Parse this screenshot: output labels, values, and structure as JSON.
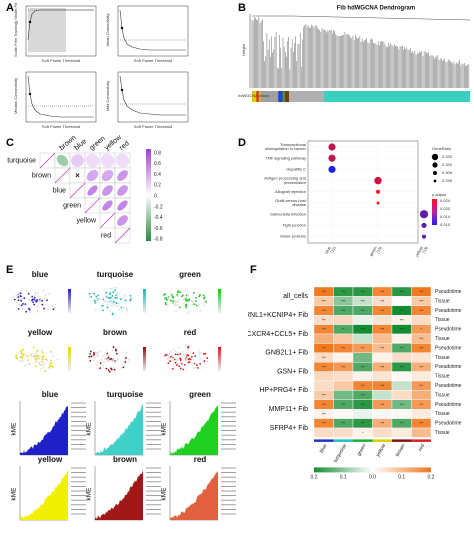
{
  "panel_labels": {
    "a": "A",
    "b": "B",
    "c": "C",
    "d": "D",
    "e": "E",
    "f": "F"
  },
  "panel_a": {
    "plots": [
      {
        "ylabel": "Scale Free Topology Model Fit",
        "xlabel": "Soft Power Threshold"
      },
      {
        "ylabel": "Mean Connectivity",
        "xlabel": "Soft Power Threshold"
      },
      {
        "ylabel": "Median Connectivity",
        "xlabel": "Soft Power Threshold"
      },
      {
        "ylabel": "Max Connectivity",
        "xlabel": "Soft Power Threshold"
      }
    ]
  },
  "panel_b": {
    "title": "Fib hdWGCNA Dendrogram",
    "ylabel": "Height",
    "row_label": "hdWGCNA colors",
    "color_bands": [
      {
        "color": "#e2c800",
        "frac": 0.02
      },
      {
        "color": "#d4301f",
        "frac": 0.01
      },
      {
        "color": "#e8a000",
        "frac": 0.01
      },
      {
        "color": "#a0a0a0",
        "frac": 0.08
      },
      {
        "color": "#2a3fd8",
        "frac": 0.02
      },
      {
        "color": "#2aa02a",
        "frac": 0.01
      },
      {
        "color": "#7a3a10",
        "frac": 0.02
      },
      {
        "color": "#b0b0b0",
        "frac": 0.16
      },
      {
        "color": "#3ad0c0",
        "frac": 0.67
      }
    ]
  },
  "panel_c": {
    "modules": [
      "turquoise",
      "brown",
      "blue",
      "green",
      "yellow",
      "red"
    ],
    "legend_ticks": [
      "0.8",
      "0.6",
      "0.4",
      "0.2",
      "0",
      "-0.2",
      "-0.4",
      "-0.6",
      "-0.8"
    ],
    "cross_mark": "×",
    "corr": [
      [
        1,
        -0.5,
        0.3,
        0.2,
        0.2,
        0.2
      ],
      [
        -0.5,
        1,
        0,
        0.5,
        0.5,
        0.6
      ],
      [
        0.3,
        0,
        1,
        0.7,
        0.6,
        0.6
      ],
      [
        0.2,
        0.5,
        0.7,
        1,
        0.7,
        0.7
      ],
      [
        0.2,
        0.5,
        0.6,
        0.7,
        1,
        0.6
      ],
      [
        0.2,
        0.6,
        0.6,
        0.7,
        0.6,
        1
      ]
    ]
  },
  "panel_d": {
    "chart_data": {
      "type": "scatter",
      "y_categories": [
        "Transcriptional misregulation in cancer",
        "TNF signaling pathway",
        "Hepatitis C",
        "Antigen processing and presentation",
        "Allograft rejection",
        "Graft-versus-host disease",
        "Salmonella infection",
        "Tight junction",
        "Motor proteins"
      ],
      "x_categories": [
        "blue (11)",
        "green (13)",
        "yellow (13)"
      ],
      "points": [
        {
          "x": "blue (11)",
          "y": "Transcriptional misregulation in cancer",
          "generatio": 0.33,
          "padjust": 0.02
        },
        {
          "x": "blue (11)",
          "y": "TNF signaling pathway",
          "generatio": 0.33,
          "padjust": 0.02
        },
        {
          "x": "blue (11)",
          "y": "Hepatitis C",
          "generatio": 0.33,
          "padjust": 0.01
        },
        {
          "x": "green (13)",
          "y": "Antigen processing and presentation",
          "generatio": 0.333,
          "padjust": 0.021
        },
        {
          "x": "green (13)",
          "y": "Allograft rejection",
          "generatio": 0.3,
          "padjust": 0.024
        },
        {
          "x": "green (13)",
          "y": "Graft-versus-host disease",
          "generatio": 0.29,
          "padjust": 0.024
        },
        {
          "x": "yellow (13)",
          "y": "Salmonella infection",
          "generatio": 0.34,
          "padjust": 0.014
        },
        {
          "x": "yellow (13)",
          "y": "Tight junction",
          "generatio": 0.31,
          "padjust": 0.014
        },
        {
          "x": "yellow (13)",
          "y": "Motor proteins",
          "generatio": 0.3,
          "padjust": 0.014
        }
      ],
      "legend_size_title": "GeneRatio",
      "legend_size_labels": [
        "0.333",
        "0.320",
        "0.306",
        "0.295"
      ],
      "legend_color_title": "p.adjust",
      "legend_color_labels": [
        "0.024",
        "0.020",
        "0.014",
        "0.010"
      ]
    }
  },
  "panel_e": {
    "umaps": [
      {
        "name": "blue",
        "color": "#2a20c8"
      },
      {
        "name": "turquoise",
        "color": "#1ab8b0"
      },
      {
        "name": "green",
        "color": "#1ac81a"
      },
      {
        "name": "yellow",
        "color": "#e8d800"
      },
      {
        "name": "brown",
        "color": "#8a1010"
      },
      {
        "name": "red",
        "color": "#d81818"
      }
    ],
    "kme": [
      {
        "name": "blue",
        "color": "#2020c8"
      },
      {
        "name": "turquoise",
        "color": "#40d0c8"
      },
      {
        "name": "green",
        "color": "#20d020"
      },
      {
        "name": "yellow",
        "color": "#f0f000"
      },
      {
        "name": "brown",
        "color": "#a01818"
      },
      {
        "name": "red",
        "color": "#e06040"
      }
    ],
    "kme_ylabel": "kME"
  },
  "panel_f": {
    "row_groups": [
      "all_cells",
      "ATRNL1+KCNIP4+ Fib",
      "CXCR4+CCL5+ Fib",
      "GNB2L1+ Fib",
      "GSN+ Fib",
      "HP+PRG4+ Fib",
      "MMP11+ Fib",
      "SFRP4+ Fib"
    ],
    "sub_rows": [
      "Pseudotime",
      "Tissue"
    ],
    "columns": [
      "blue",
      "turquoise",
      "green",
      "yellow",
      "brown",
      "red"
    ],
    "legend_ticks": [
      "0.2",
      "0.1",
      "0.0",
      "0.1",
      "0.2"
    ],
    "cells": [
      [
        0.2,
        -0.18,
        -0.18,
        0.18,
        -0.18,
        0.2
      ],
      [
        0.08,
        -0.1,
        -0.05,
        0.05,
        0,
        0.08
      ],
      [
        0.18,
        -0.15,
        -0.15,
        0.18,
        -0.2,
        0.18
      ],
      [
        0.05,
        0.06,
        -0.02,
        0.04,
        0.02,
        0.05
      ],
      [
        0.18,
        -0.15,
        -0.2,
        0.18,
        -0.2,
        0.15
      ],
      [
        0.12,
        0.08,
        -0.05,
        0.1,
        0.02,
        0.1
      ],
      [
        0.2,
        0.18,
        0.15,
        0.1,
        -0.15,
        0.18
      ],
      [
        0.05,
        0.02,
        -0.12,
        0.02,
        0.05,
        0.04
      ],
      [
        0.18,
        0.15,
        -0.15,
        0.12,
        -0.18,
        0.12
      ],
      [
        0.06,
        0.05,
        0.02,
        0.04,
        0.01,
        0.03
      ],
      [
        0.05,
        0.08,
        0.18,
        0.18,
        -0.05,
        0.15
      ],
      [
        0.08,
        -0.12,
        -0.15,
        -0.05,
        0.05,
        0.12
      ],
      [
        0.18,
        -0.15,
        -0.18,
        0.15,
        -0.12,
        0.15
      ],
      [
        0.02,
        0.01,
        -0.02,
        0.01,
        0.01,
        0.03
      ],
      [
        0.18,
        -0.15,
        -0.18,
        0.12,
        -0.15,
        0.18
      ],
      [
        0.05,
        0.05,
        0.02,
        0.05,
        0.03,
        0.1
      ]
    ],
    "stars": [
      [
        "***",
        "***",
        "***",
        "***",
        "***",
        "***"
      ],
      [
        "***",
        "***",
        "***",
        "***",
        ".",
        "***"
      ],
      [
        "***",
        "***",
        "***",
        "***",
        "***",
        "***"
      ],
      [
        "***",
        "",
        "",
        "",
        "***",
        ""
      ],
      [
        "***",
        "**",
        "***",
        "***",
        "***",
        "*"
      ],
      [
        "",
        "",
        "",
        "",
        "",
        "***"
      ],
      [
        "**",
        "***",
        "***",
        "***",
        "***",
        "***"
      ],
      [
        "***",
        "",
        "",
        "",
        "",
        ""
      ],
      [
        "***",
        "***",
        "***",
        "***",
        "***",
        "***"
      ],
      [
        "",
        "",
        "",
        "",
        "",
        ""
      ],
      [
        "",
        "",
        "***",
        "***",
        "",
        "***"
      ],
      [
        "***",
        "",
        "***",
        "",
        "",
        ""
      ],
      [
        "***",
        "***",
        "***",
        "***",
        "***",
        "***"
      ],
      [
        "***",
        "",
        "",
        "",
        "",
        ""
      ],
      [
        "***",
        "***",
        "***",
        "***",
        "***",
        "***"
      ],
      [
        "",
        "",
        "*",
        "",
        "",
        ""
      ]
    ]
  }
}
